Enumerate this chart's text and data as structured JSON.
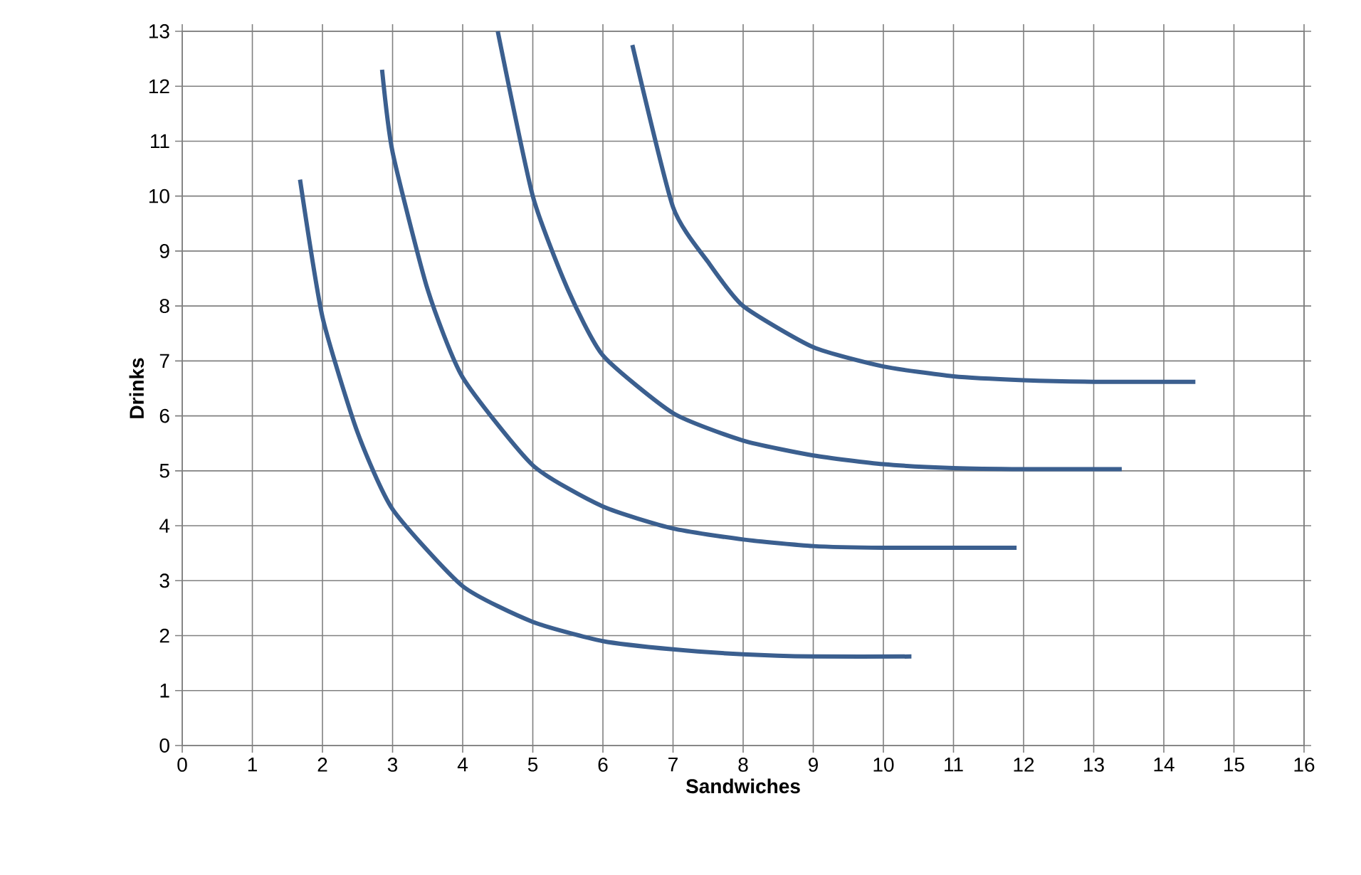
{
  "chart_data": {
    "type": "line",
    "xlabel": "Sandwiches",
    "ylabel": "Drinks",
    "xlim": [
      0,
      16
    ],
    "ylim": [
      0,
      13
    ],
    "xticks": [
      0,
      1,
      2,
      3,
      4,
      5,
      6,
      7,
      8,
      9,
      10,
      11,
      12,
      13,
      14,
      15,
      16
    ],
    "yticks": [
      0,
      1,
      2,
      3,
      4,
      5,
      6,
      7,
      8,
      9,
      10,
      11,
      12,
      13
    ],
    "grid": true,
    "marker": "none",
    "line_style": "solid",
    "series": [
      {
        "color": "#3b5f8f",
        "x": [
          1.68,
          2,
          2.5,
          3,
          4,
          5,
          6,
          7,
          8,
          9,
          10.4
        ],
        "values": [
          10.3,
          7.8,
          5.7,
          4.3,
          2.9,
          2.25,
          1.9,
          1.75,
          1.66,
          1.62,
          1.62
        ]
      },
      {
        "color": "#3b5f8f",
        "x": [
          2.85,
          3,
          3.5,
          4,
          5,
          6,
          7,
          8,
          9,
          10,
          11.9
        ],
        "values": [
          12.3,
          10.8,
          8.3,
          6.7,
          5.1,
          4.35,
          3.95,
          3.75,
          3.63,
          3.6,
          3.6
        ]
      },
      {
        "color": "#3b5f8f",
        "x": [
          4.5,
          5,
          5.5,
          6,
          7,
          8,
          9,
          10,
          11,
          12,
          13.4
        ],
        "values": [
          13,
          10,
          8.3,
          7.1,
          6.05,
          5.55,
          5.28,
          5.12,
          5.05,
          5.03,
          5.03
        ]
      },
      {
        "color": "#3b5f8f",
        "x": [
          6.42,
          7,
          7.5,
          8,
          9,
          10,
          11,
          12,
          13,
          14.45
        ],
        "values": [
          12.75,
          9.8,
          8.8,
          8,
          7.25,
          6.9,
          6.72,
          6.65,
          6.62,
          6.62
        ]
      }
    ]
  }
}
